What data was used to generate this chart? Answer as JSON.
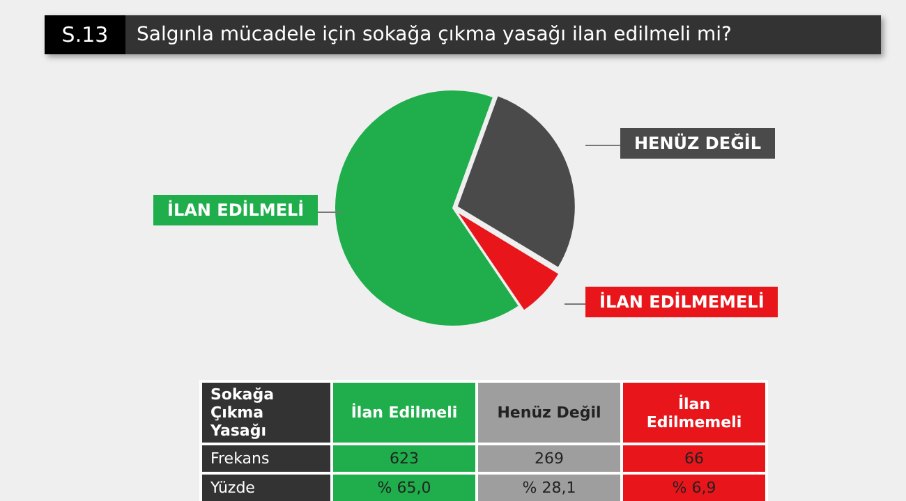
{
  "chart_data": {
    "type": "pie",
    "title": "Salgınla mücadele için sokağa çıkma yasağı ilan edilmeli mi?",
    "categories": [
      "İLAN EDİLMELİ",
      "HENÜZ DEĞİL",
      "İLAN EDİLMEMELİ"
    ],
    "values": [
      65.0,
      28.1,
      6.9
    ],
    "colors": [
      "#1fae4b",
      "#4a4a4a",
      "#e8161b"
    ],
    "legend": false,
    "annotations": [
      "S.13",
      "Sokağa Çıkma Yasağı",
      "İlan Edilmeli",
      "Henüz Değil",
      "İlan Edilmemeli",
      "Frekans",
      "Yüzde",
      "623",
      "269",
      "66",
      "% 65,0",
      "% 28,1",
      "% 6,9"
    ]
  }
}
